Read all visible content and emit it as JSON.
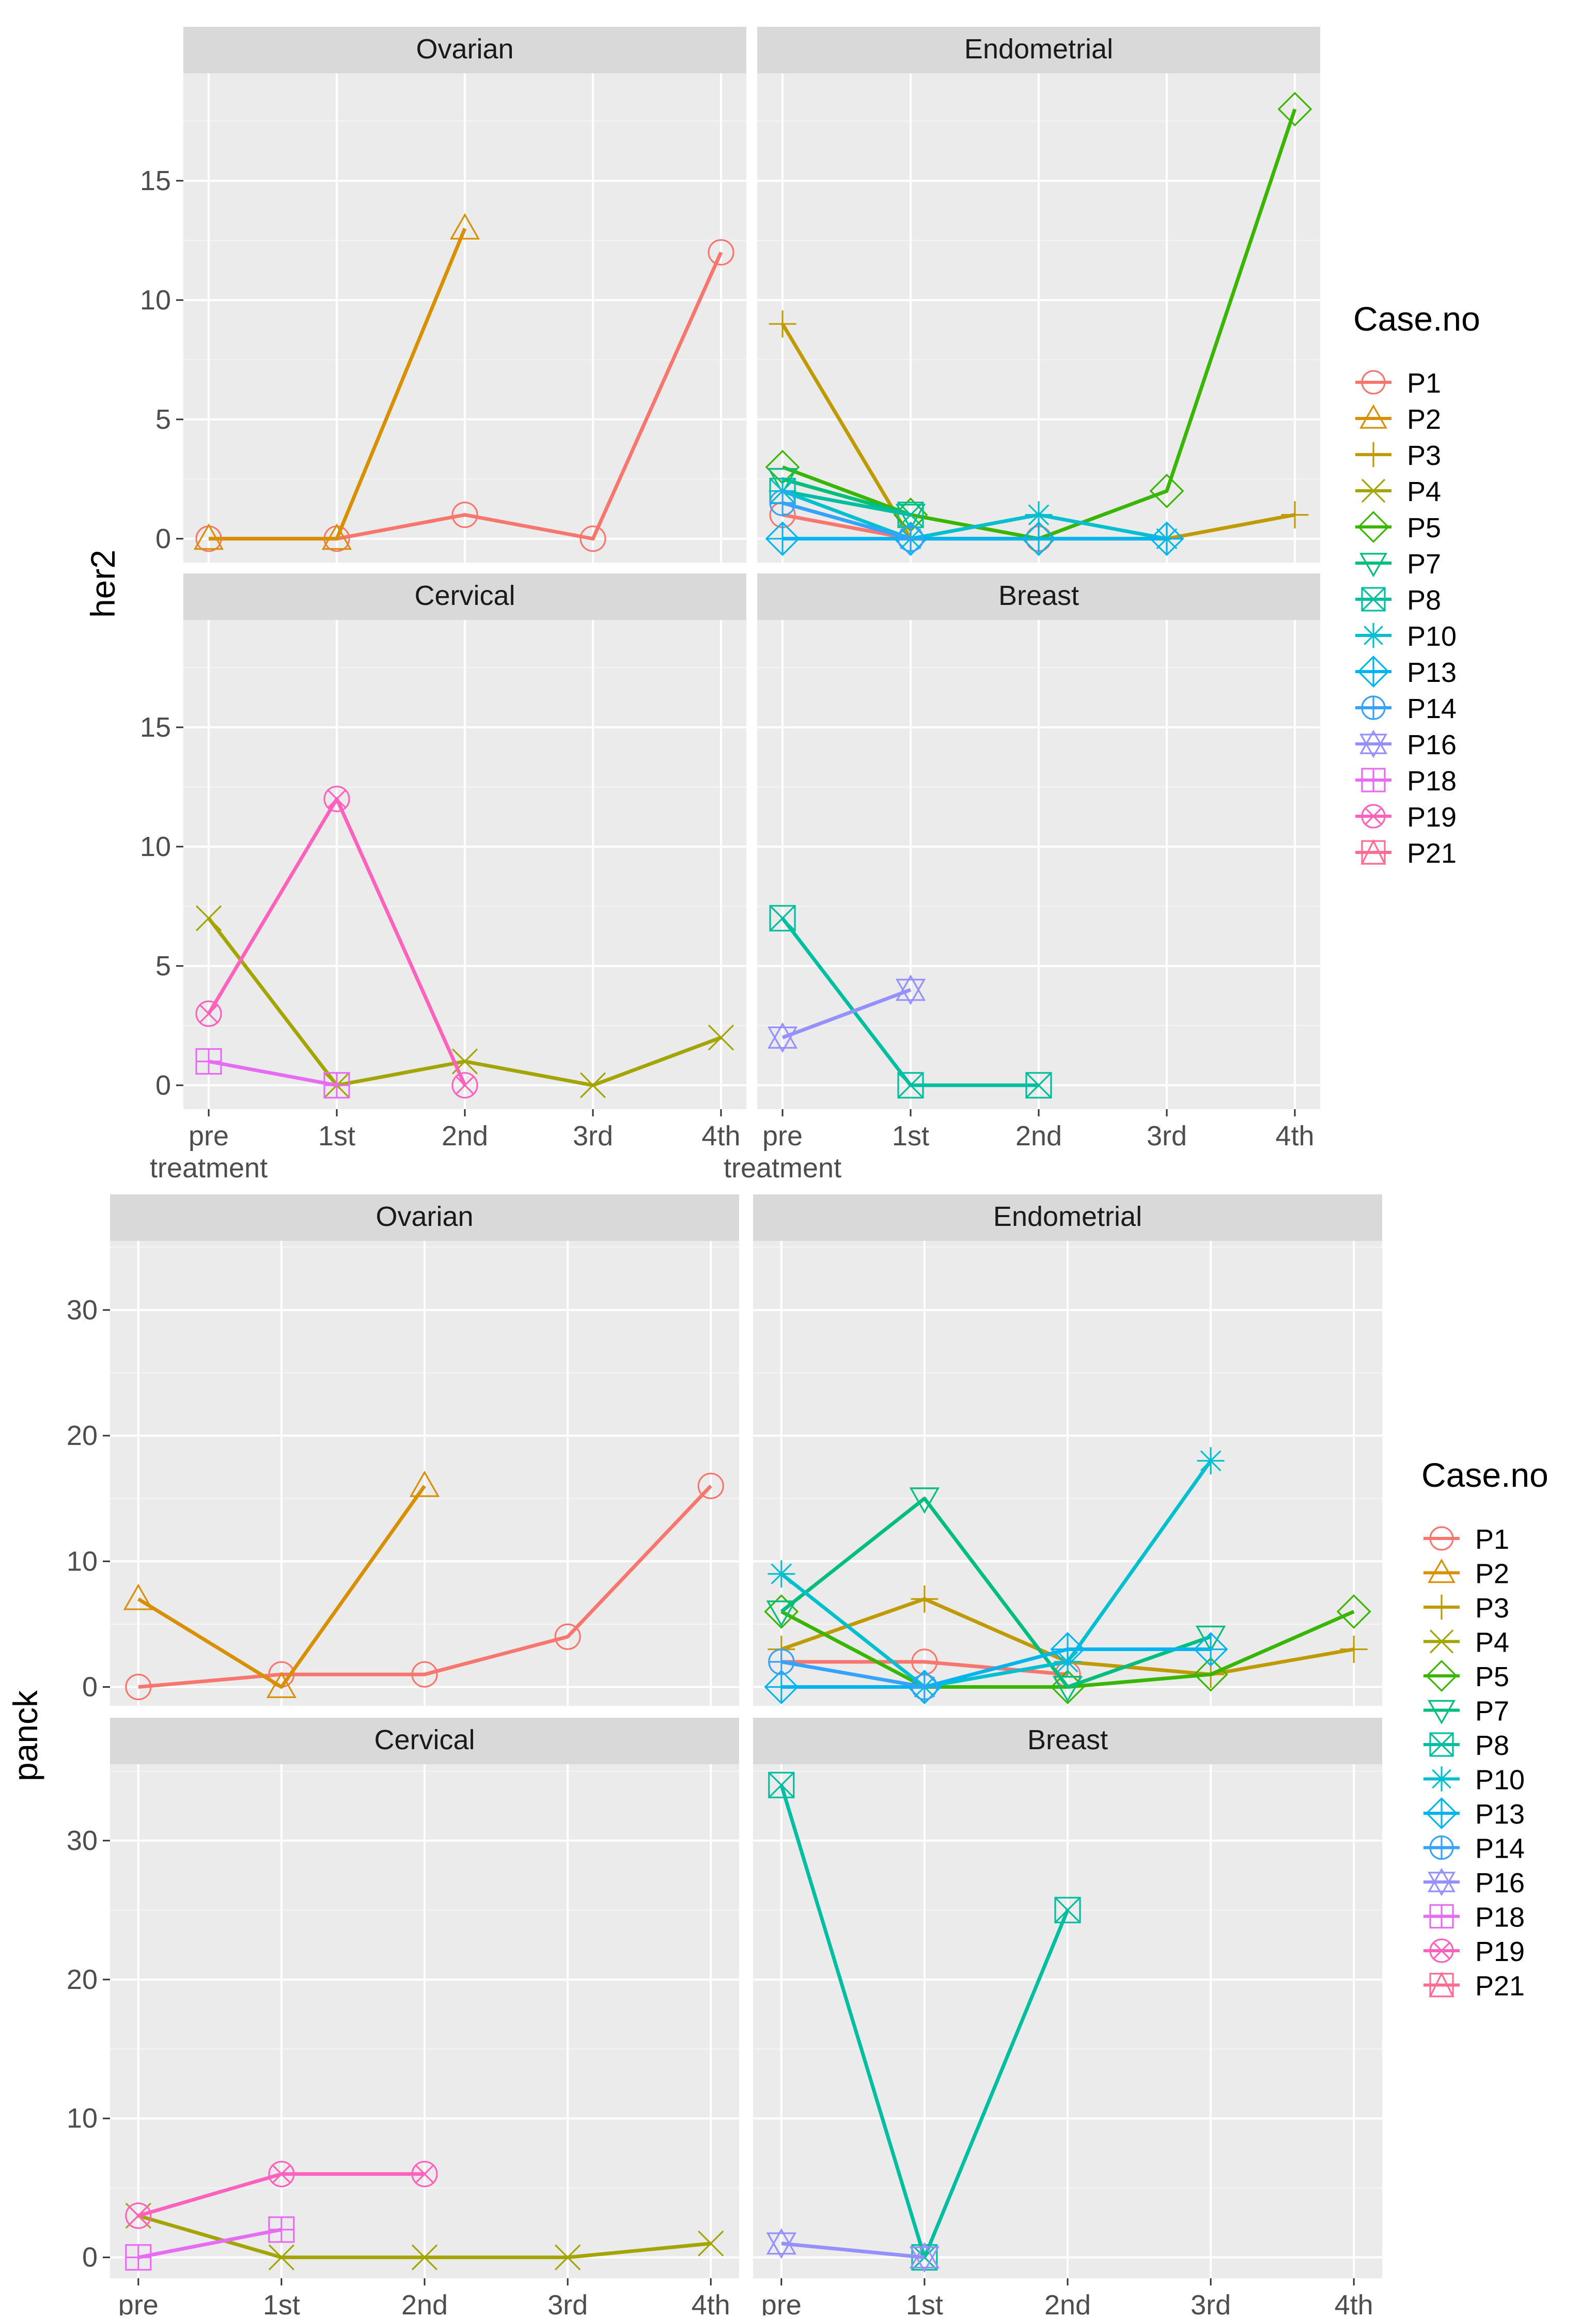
{
  "x_categories": [
    "pre\ntreatment",
    "1st",
    "2nd",
    "3rd",
    "4th"
  ],
  "legend_title": "Case.no",
  "legend_entries": [
    {
      "id": "P1",
      "label": "P1",
      "color": "#F8766D",
      "shape": "circle"
    },
    {
      "id": "P2",
      "label": "P2",
      "color": "#D89000",
      "shape": "triangle"
    },
    {
      "id": "P3",
      "label": "P3",
      "color": "#C09B00",
      "shape": "plus"
    },
    {
      "id": "P4",
      "label": "P4",
      "color": "#A3A500",
      "shape": "cross"
    },
    {
      "id": "P5",
      "label": "P5",
      "color": "#39B600",
      "shape": "diamond"
    },
    {
      "id": "P7",
      "label": "P7",
      "color": "#00BF7D",
      "shape": "triangle-down"
    },
    {
      "id": "P8",
      "label": "P8",
      "color": "#00BFA0",
      "shape": "square-cross"
    },
    {
      "id": "P10",
      "label": "P10",
      "color": "#00C0D0",
      "shape": "asterisk"
    },
    {
      "id": "P13",
      "label": "P13",
      "color": "#00B4F0",
      "shape": "diamond-plus"
    },
    {
      "id": "P14",
      "label": "P14",
      "color": "#35A2FF",
      "shape": "circle-plus"
    },
    {
      "id": "P16",
      "label": "P16",
      "color": "#9590FF",
      "shape": "star-of-david"
    },
    {
      "id": "P18",
      "label": "P18",
      "color": "#E76BF3",
      "shape": "square-plus"
    },
    {
      "id": "P19",
      "label": "P19",
      "color": "#FF62BC",
      "shape": "circle-cross"
    },
    {
      "id": "P21",
      "label": "P21",
      "color": "#FF6C91",
      "shape": "square-triangle"
    }
  ],
  "chart_data": [
    {
      "type": "line",
      "ylabel": "her2",
      "ylim": [
        -1,
        19.5
      ],
      "yticks": [
        0,
        5,
        10,
        15
      ],
      "facets": [
        {
          "title": "Ovarian",
          "series": [
            {
              "case": "P1",
              "points": [
                [
                  0,
                  0
                ],
                [
                  1,
                  0
                ],
                [
                  2,
                  1
                ],
                [
                  3,
                  0
                ],
                [
                  4,
                  12
                ]
              ]
            },
            {
              "case": "P2",
              "points": [
                [
                  0,
                  0
                ],
                [
                  1,
                  0
                ],
                [
                  2,
                  13
                ]
              ]
            }
          ]
        },
        {
          "title": "Endometrial",
          "series": [
            {
              "case": "P1",
              "points": [
                [
                  0,
                  1
                ],
                [
                  1,
                  0
                ],
                [
                  2,
                  0
                ]
              ]
            },
            {
              "case": "P3",
              "points": [
                [
                  0,
                  9
                ],
                [
                  1,
                  0
                ],
                [
                  2,
                  0
                ],
                [
                  3,
                  0
                ],
                [
                  4,
                  1
                ]
              ]
            },
            {
              "case": "P5",
              "points": [
                [
                  0,
                  3
                ],
                [
                  1,
                  1
                ],
                [
                  2,
                  0
                ],
                [
                  3,
                  2
                ],
                [
                  4,
                  18
                ]
              ]
            },
            {
              "case": "P7",
              "points": [
                [
                  0,
                  2.5
                ],
                [
                  1,
                  1
                ]
              ]
            },
            {
              "case": "P8",
              "points": [
                [
                  0,
                  2
                ],
                [
                  1,
                  1
                ]
              ]
            },
            {
              "case": "P10",
              "points": [
                [
                  0,
                  2
                ],
                [
                  1,
                  0
                ],
                [
                  2,
                  1
                ],
                [
                  3,
                  0
                ]
              ]
            },
            {
              "case": "P13",
              "points": [
                [
                  0,
                  0
                ],
                [
                  1,
                  0
                ],
                [
                  2,
                  0
                ],
                [
                  3,
                  0
                ]
              ]
            },
            {
              "case": "P14",
              "points": [
                [
                  0,
                  1.5
                ],
                [
                  1,
                  0
                ]
              ]
            }
          ]
        },
        {
          "title": "Cervical",
          "series": [
            {
              "case": "P4",
              "points": [
                [
                  0,
                  7
                ],
                [
                  1,
                  0
                ],
                [
                  2,
                  1
                ],
                [
                  3,
                  0
                ],
                [
                  4,
                  2
                ]
              ]
            },
            {
              "case": "P18",
              "points": [
                [
                  0,
                  1
                ],
                [
                  1,
                  0
                ]
              ]
            },
            {
              "case": "P19",
              "points": [
                [
                  0,
                  3
                ],
                [
                  1,
                  12
                ],
                [
                  2,
                  0
                ]
              ]
            }
          ]
        },
        {
          "title": "Breast",
          "series": [
            {
              "case": "P8",
              "points": [
                [
                  0,
                  7
                ],
                [
                  1,
                  0
                ],
                [
                  2,
                  0
                ]
              ]
            },
            {
              "case": "P16",
              "points": [
                [
                  0,
                  2
                ],
                [
                  1,
                  4
                ]
              ]
            }
          ]
        }
      ]
    },
    {
      "type": "line",
      "ylabel": "panck",
      "ylim": [
        -1.5,
        35.5
      ],
      "yticks": [
        0,
        10,
        20,
        30
      ],
      "facets": [
        {
          "title": "Ovarian",
          "series": [
            {
              "case": "P1",
              "points": [
                [
                  0,
                  0
                ],
                [
                  1,
                  1
                ],
                [
                  2,
                  1
                ],
                [
                  3,
                  4
                ],
                [
                  4,
                  16
                ]
              ]
            },
            {
              "case": "P2",
              "points": [
                [
                  0,
                  7
                ],
                [
                  1,
                  0
                ],
                [
                  2,
                  16
                ]
              ]
            }
          ]
        },
        {
          "title": "Endometrial",
          "series": [
            {
              "case": "P1",
              "points": [
                [
                  0,
                  2
                ],
                [
                  1,
                  2
                ],
                [
                  2,
                  1
                ]
              ]
            },
            {
              "case": "P3",
              "points": [
                [
                  0,
                  3
                ],
                [
                  1,
                  7
                ],
                [
                  2,
                  2
                ],
                [
                  3,
                  1
                ],
                [
                  4,
                  3
                ]
              ]
            },
            {
              "case": "P5",
              "points": [
                [
                  0,
                  6
                ],
                [
                  1,
                  0
                ],
                [
                  2,
                  0
                ],
                [
                  3,
                  1
                ],
                [
                  4,
                  6
                ]
              ]
            },
            {
              "case": "P7",
              "points": [
                [
                  0,
                  6
                ],
                [
                  1,
                  15
                ],
                [
                  2,
                  0
                ],
                [
                  3,
                  4
                ]
              ]
            },
            {
              "case": "P10",
              "points": [
                [
                  0,
                  9
                ],
                [
                  1,
                  0
                ],
                [
                  2,
                  2
                ],
                [
                  3,
                  18
                ]
              ]
            },
            {
              "case": "P13",
              "points": [
                [
                  0,
                  0
                ],
                [
                  1,
                  0
                ],
                [
                  2,
                  3
                ],
                [
                  3,
                  3
                ]
              ]
            },
            {
              "case": "P14",
              "points": [
                [
                  0,
                  2
                ],
                [
                  1,
                  0
                ]
              ]
            }
          ]
        },
        {
          "title": "Cervical",
          "series": [
            {
              "case": "P4",
              "points": [
                [
                  0,
                  3
                ],
                [
                  1,
                  0
                ],
                [
                  2,
                  0
                ],
                [
                  3,
                  0
                ],
                [
                  4,
                  1
                ]
              ]
            },
            {
              "case": "P18",
              "points": [
                [
                  0,
                  0
                ],
                [
                  1,
                  2
                ]
              ]
            },
            {
              "case": "P19",
              "points": [
                [
                  0,
                  3
                ],
                [
                  1,
                  6
                ],
                [
                  2,
                  6
                ]
              ]
            }
          ]
        },
        {
          "title": "Breast",
          "series": [
            {
              "case": "P8",
              "points": [
                [
                  0,
                  34
                ],
                [
                  1,
                  0
                ],
                [
                  2,
                  25
                ]
              ]
            },
            {
              "case": "P16",
              "points": [
                [
                  0,
                  1
                ],
                [
                  1,
                  0
                ]
              ]
            }
          ]
        }
      ]
    }
  ]
}
